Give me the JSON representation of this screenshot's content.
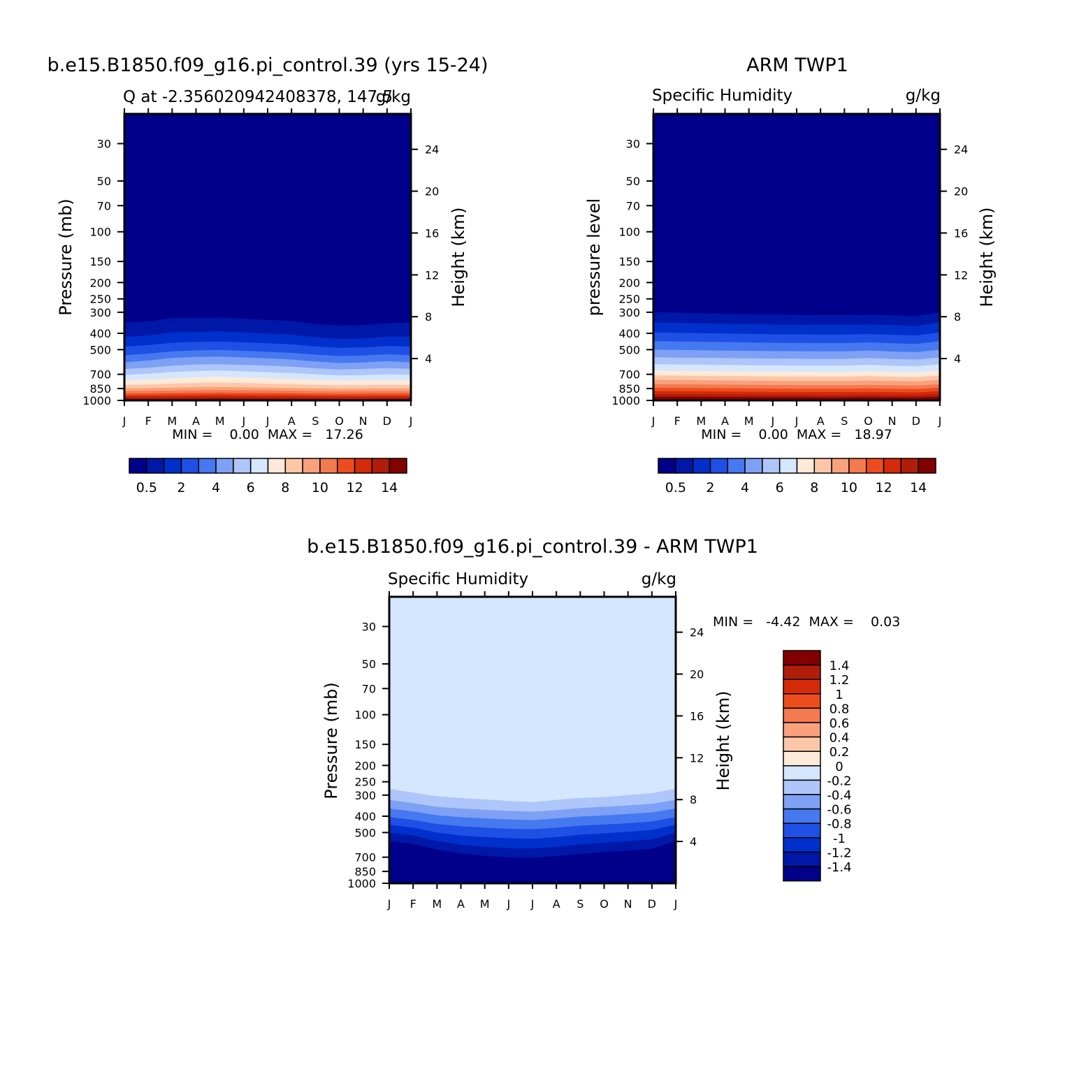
{
  "months": [
    "J",
    "F",
    "M",
    "A",
    "M",
    "J",
    "J",
    "A",
    "S",
    "O",
    "N",
    "D",
    "J"
  ],
  "pressure_ticks": [
    30,
    50,
    70,
    100,
    150,
    200,
    250,
    300,
    400,
    500,
    700,
    850,
    1000
  ],
  "height_ticks": [
    4,
    8,
    12,
    16,
    20,
    24
  ],
  "panels": {
    "model": {
      "title": "b.e15.B1850.f09_g16.pi_control.39 (yrs 15-24)",
      "subtitle_left": "Q at -2.356020942408378, 147.5",
      "subtitle_right": "g/kg",
      "ylabel_left": "Pressure (mb)",
      "ylabel_right": "Height (km)",
      "minmax": "MIN =    0.00  MAX =   17.26"
    },
    "obs": {
      "title": "ARM TWP1",
      "subtitle_left": "Specific Humidity",
      "subtitle_right": "g/kg",
      "ylabel_left": "pressure level",
      "ylabel_right": "Height (km)",
      "minmax": "MIN =    0.00  MAX =   18.97"
    },
    "diff": {
      "title": "b.e15.B1850.f09_g16.pi_control.39 - ARM TWP1",
      "subtitle_left": "Specific Humidity",
      "subtitle_right": "g/kg",
      "ylabel_left": "Pressure (mb)",
      "ylabel_right": "Height (km)",
      "minmax": "MIN =   -4.42  MAX =    0.03"
    }
  },
  "colorbars": {
    "abs_colors": [
      "#00008b",
      "#0018a8",
      "#0030cc",
      "#1e50e6",
      "#4678f0",
      "#7ea0f5",
      "#aec6fa",
      "#d5e6ff",
      "#ffe9d8",
      "#fcc7a8",
      "#f8a17c",
      "#f47a50",
      "#ed4d1e",
      "#d42a0a",
      "#b01e0a",
      "#820000"
    ],
    "abs_labels": [
      "0.5",
      "2",
      "4",
      "6",
      "8",
      "10",
      "12",
      "14"
    ],
    "diff_colors": [
      "#820000",
      "#b01e0a",
      "#d42a0a",
      "#ed4d1e",
      "#f47a50",
      "#f8a17c",
      "#fcc7a8",
      "#ffe9d8",
      "#d5e6ff",
      "#aec6fa",
      "#7ea0f5",
      "#4678f0",
      "#1e50e6",
      "#0030cc",
      "#0018a8",
      "#00008b"
    ],
    "diff_labels": [
      "1.4",
      "1.2",
      "1",
      "0.8",
      "0.6",
      "0.4",
      "0.2",
      "0",
      "-0.2",
      "-0.4",
      "-0.6",
      "-0.8",
      "-1",
      "-1.2",
      "-1.4"
    ]
  },
  "chart_data": [
    {
      "type": "heatmap",
      "title": "b.e15.B1850.f09_g16.pi_control.39 (yrs 15-24)",
      "subtitle": "Q at -2.356020942408378, 147.5",
      "units": "g/kg",
      "x": [
        "J",
        "F",
        "M",
        "A",
        "M",
        "J",
        "J",
        "A",
        "S",
        "O",
        "N",
        "D",
        "J"
      ],
      "ylabel": "Pressure (mb)",
      "y2label": "Height (km)",
      "ylim": [
        1000,
        20
      ],
      "yscale": "log",
      "levels": [
        0.5,
        1,
        2,
        3,
        4,
        5,
        6,
        7,
        8,
        9,
        10,
        11,
        12,
        13,
        14
      ],
      "contour_pressures_mb": [
        [
          345,
          340,
          325,
          325,
          322,
          328,
          333,
          338,
          352,
          360,
          358,
          348,
          345
        ],
        [
          420,
          412,
          395,
          392,
          390,
          395,
          402,
          408,
          422,
          432,
          430,
          418,
          420
        ],
        [
          480,
          470,
          455,
          450,
          448,
          452,
          458,
          465,
          478,
          488,
          485,
          475,
          480
        ],
        [
          540,
          528,
          512,
          505,
          502,
          508,
          515,
          522,
          535,
          545,
          542,
          532,
          540
        ],
        [
          595,
          580,
          560,
          552,
          550,
          556,
          563,
          572,
          588,
          600,
          595,
          585,
          595
        ],
        [
          650,
          640,
          622,
          612,
          610,
          615,
          622,
          630,
          645,
          655,
          650,
          642,
          650
        ],
        [
          705,
          695,
          678,
          668,
          665,
          672,
          680,
          688,
          700,
          710,
          708,
          700,
          705
        ],
        [
          760,
          752,
          738,
          728,
          725,
          730,
          738,
          745,
          755,
          762,
          760,
          755,
          760
        ],
        [
          810,
          805,
          795,
          788,
          785,
          790,
          795,
          800,
          808,
          814,
          812,
          808,
          810
        ],
        [
          848,
          845,
          840,
          835,
          832,
          836,
          840,
          843,
          848,
          852,
          850,
          848,
          848
        ],
        [
          880,
          878,
          873,
          870,
          868,
          870,
          872,
          875,
          880,
          883,
          882,
          880,
          880
        ],
        [
          910,
          908,
          905,
          902,
          900,
          902,
          904,
          906,
          910,
          913,
          912,
          910,
          910
        ],
        [
          935,
          933,
          930,
          928,
          926,
          928,
          930,
          932,
          935,
          938,
          937,
          935,
          935
        ],
        [
          958,
          956,
          954,
          952,
          951,
          952,
          954,
          955,
          958,
          960,
          959,
          958,
          958
        ],
        [
          980,
          979,
          978,
          976,
          975,
          976,
          977,
          978,
          980,
          981,
          981,
          980,
          980
        ]
      ],
      "min": 0.0,
      "max": 17.26
    },
    {
      "type": "heatmap",
      "title": "ARM TWP1",
      "subtitle": "Specific Humidity",
      "units": "g/kg",
      "x": [
        "J",
        "F",
        "M",
        "A",
        "M",
        "J",
        "J",
        "A",
        "S",
        "O",
        "N",
        "D",
        "J"
      ],
      "ylabel": "pressure level",
      "y2label": "Height (km)",
      "ylim": [
        1000,
        20
      ],
      "yscale": "log",
      "levels": [
        0.5,
        1,
        2,
        3,
        4,
        5,
        6,
        7,
        8,
        9,
        10,
        11,
        12,
        13,
        14
      ],
      "contour_pressures_mb": [
        [
          300,
          302,
          305,
          307,
          309,
          310,
          311,
          312,
          312,
          311,
          313,
          316,
          300
        ],
        [
          345,
          347,
          349,
          351,
          353,
          355,
          356,
          357,
          357,
          355,
          358,
          362,
          345
        ],
        [
          395,
          397,
          399,
          401,
          403,
          405,
          406,
          407,
          407,
          404,
          408,
          412,
          395
        ],
        [
          445,
          447,
          449,
          451,
          453,
          455,
          456,
          457,
          457,
          453,
          458,
          462,
          445
        ],
        [
          500,
          502,
          504,
          506,
          508,
          510,
          511,
          512,
          512,
          506,
          513,
          517,
          500
        ],
        [
          555,
          557,
          559,
          561,
          563,
          565,
          566,
          567,
          567,
          560,
          568,
          572,
          555
        ],
        [
          610,
          612,
          614,
          616,
          618,
          620,
          621,
          622,
          622,
          615,
          623,
          627,
          610
        ],
        [
          665,
          667,
          669,
          671,
          673,
          675,
          676,
          677,
          677,
          670,
          678,
          682,
          665
        ],
        [
          710,
          712,
          714,
          716,
          718,
          720,
          721,
          722,
          722,
          716,
          723,
          727,
          710
        ],
        [
          755,
          757,
          759,
          761,
          763,
          765,
          766,
          767,
          767,
          762,
          768,
          772,
          755
        ],
        [
          800,
          802,
          804,
          806,
          808,
          810,
          811,
          812,
          812,
          808,
          813,
          817,
          800
        ],
        [
          840,
          842,
          844,
          846,
          848,
          850,
          851,
          852,
          852,
          848,
          853,
          857,
          840
        ],
        [
          880,
          882,
          884,
          886,
          888,
          890,
          891,
          892,
          892,
          889,
          893,
          897,
          880
        ],
        [
          915,
          917,
          919,
          921,
          923,
          925,
          926,
          927,
          927,
          925,
          928,
          931,
          915
        ],
        [
          950,
          951,
          952,
          953,
          954,
          955,
          956,
          957,
          957,
          956,
          957,
          959,
          950
        ]
      ],
      "min": 0.0,
      "max": 18.97
    },
    {
      "type": "heatmap",
      "title": "b.e15.B1850.f09_g16.pi_control.39 - ARM TWP1",
      "subtitle": "Specific Humidity",
      "units": "g/kg",
      "x": [
        "J",
        "F",
        "M",
        "A",
        "M",
        "J",
        "J",
        "A",
        "S",
        "O",
        "N",
        "D",
        "J"
      ],
      "ylabel": "Pressure (mb)",
      "y2label": "Height (km)",
      "ylim": [
        1000,
        20
      ],
      "yscale": "log",
      "levels": [
        -1.4,
        -1.2,
        -1,
        -0.8,
        -0.6,
        -0.4,
        -0.2,
        0,
        0.2,
        0.4,
        0.6,
        0.8,
        1,
        1.2,
        1.4
      ],
      "background_value": 0.0,
      "contour_pressures_mb": [
        [
          275,
          290,
          305,
          312,
          318,
          325,
          330,
          320,
          312,
          308,
          300,
          292,
          275
        ],
        [
          320,
          335,
          352,
          360,
          366,
          372,
          376,
          368,
          358,
          352,
          345,
          338,
          320
        ],
        [
          360,
          375,
          395,
          405,
          412,
          418,
          422,
          412,
          402,
          396,
          388,
          380,
          360
        ],
        [
          405,
          420,
          445,
          458,
          468,
          475,
          478,
          468,
          455,
          448,
          440,
          430,
          405
        ],
        [
          450,
          468,
          500,
          520,
          532,
          540,
          545,
          532,
          515,
          505,
          495,
          482,
          450
        ],
        [
          500,
          520,
          560,
          590,
          608,
          618,
          622,
          608,
          588,
          575,
          562,
          548,
          500
        ],
        [
          560,
          585,
          630,
          665,
          688,
          700,
          705,
          690,
          668,
          652,
          640,
          625,
          560
        ]
      ],
      "min": -4.42,
      "max": 0.03
    }
  ]
}
